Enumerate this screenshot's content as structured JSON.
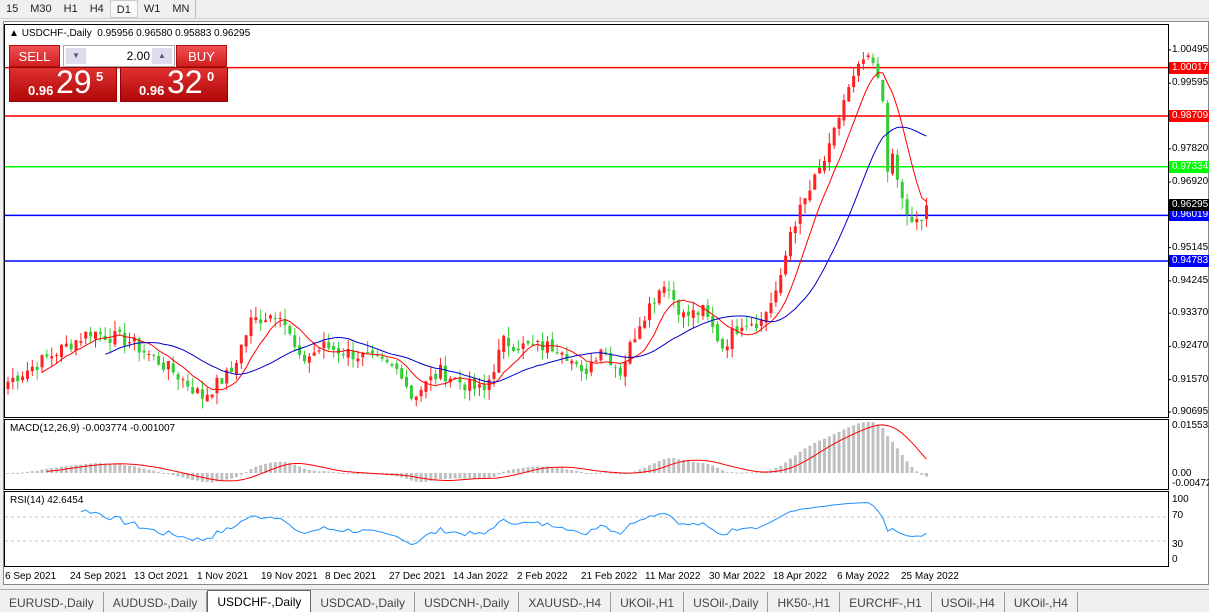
{
  "timeframes": [
    "15",
    "M30",
    "H1",
    "H4",
    "D1",
    "W1",
    "MN"
  ],
  "active_timeframe": "D1",
  "chart": {
    "symbol_label": "USDCHF-,Daily",
    "ohlc_text": "0.95956 0.96580 0.95883 0.96295",
    "price_axis": [
      "1.00495",
      "0.99595",
      "0.97820",
      "0.96920",
      "0.95145",
      "0.94245",
      "0.93370",
      "0.92470",
      "0.91570",
      "0.90695"
    ],
    "levels": [
      {
        "value": "1.00017",
        "color": "#ff0000"
      },
      {
        "value": "0.98709",
        "color": "#ff0000"
      },
      {
        "value": "0.97334",
        "color": "#00ff00"
      },
      {
        "value": "0.96019",
        "color": "#0000ff"
      },
      {
        "value": "0.94783",
        "color": "#0000ff"
      }
    ],
    "current_price": "0.96295",
    "bull_color": "#ff2020",
    "bear_color": "#33cc33",
    "ma_fast_color": "#ff0000",
    "ma_slow_color": "#0000cc",
    "price_anchors": [
      [
        0,
        0.9152
      ],
      [
        17,
        0.9288
      ],
      [
        25,
        0.9261
      ],
      [
        34,
        0.9179
      ],
      [
        40,
        0.9111
      ],
      [
        46,
        0.9179
      ],
      [
        50,
        0.9315
      ],
      [
        56,
        0.9342
      ],
      [
        60,
        0.9206
      ],
      [
        65,
        0.9247
      ],
      [
        73,
        0.922
      ],
      [
        81,
        0.9179
      ],
      [
        83,
        0.9111
      ],
      [
        89,
        0.9179
      ],
      [
        95,
        0.9138
      ],
      [
        98,
        0.9125
      ],
      [
        102,
        0.926
      ],
      [
        106,
        0.9247
      ],
      [
        114,
        0.9247
      ],
      [
        118,
        0.9166
      ],
      [
        122,
        0.9247
      ],
      [
        126,
        0.9179
      ],
      [
        130,
        0.9315
      ],
      [
        135,
        0.9424
      ],
      [
        139,
        0.9329
      ],
      [
        143,
        0.9342
      ],
      [
        147,
        0.9247
      ],
      [
        151,
        0.9315
      ],
      [
        155,
        0.9315
      ],
      [
        159,
        0.9424
      ],
      [
        161,
        0.956
      ],
      [
        166,
        0.9696
      ],
      [
        169,
        0.9778
      ],
      [
        172,
        0.9914
      ],
      [
        176,
        1.0022
      ],
      [
        178,
        1.0009
      ],
      [
        180,
        0.9914
      ],
      [
        181,
        0.9737
      ],
      [
        182,
        0.975
      ],
      [
        184,
        0.9642
      ],
      [
        186,
        0.9574
      ],
      [
        188,
        0.9587
      ],
      [
        189,
        0.9629
      ]
    ]
  },
  "trade_panel": {
    "sell_label": "SELL",
    "buy_label": "BUY",
    "lot": "2.00",
    "sell_prefix": "0.96",
    "sell_big": "29",
    "sell_sup": "5",
    "buy_prefix": "0.96",
    "buy_big": "32",
    "buy_sup": "0"
  },
  "macd": {
    "label": "MACD(12,26,9) -0.003774 -0.001007",
    "axis": [
      "0.015533",
      "0.00",
      "-0.004729"
    ]
  },
  "rsi": {
    "label": "RSI(14) 42.6454",
    "axis": [
      "100",
      "70",
      "30",
      "0"
    ]
  },
  "dates": [
    "6 Sep 2021",
    "24 Sep 2021",
    "13 Oct 2021",
    "1 Nov 2021",
    "19 Nov 2021",
    "8 Dec 2021",
    "27 Dec 2021",
    "14 Jan 2022",
    "2 Feb 2022",
    "21 Feb 2022",
    "11 Mar 2022",
    "30 Mar 2022",
    "18 Apr 2022",
    "6 May 2022",
    "25 May 2022"
  ],
  "tabs": [
    "EURUSD-,Daily",
    "AUDUSD-,Daily",
    "USDCHF-,Daily",
    "USDCAD-,Daily",
    "USDCNH-,Daily",
    "XAUUSD-,H4",
    "UKOil-,H1",
    "USOil-,Daily",
    "HK50-,H1",
    "EURCHF-,H1",
    "USOil-,H4",
    "UKOil-,H4"
  ],
  "active_tab": "USDCHF-,Daily"
}
